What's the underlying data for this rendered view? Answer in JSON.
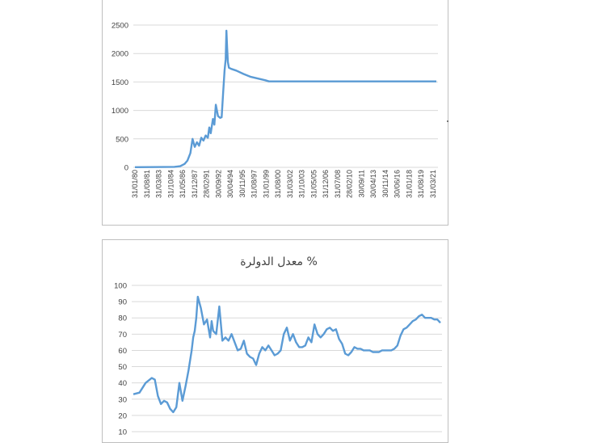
{
  "chart_data": [
    {
      "type": "line",
      "title": "",
      "xlabel": "",
      "ylabel": "",
      "ylim": [
        0,
        2500
      ],
      "y_ticks": [
        "0",
        "500",
        "1000",
        "1500",
        "2000",
        "2500"
      ],
      "x_tick_labels": [
        "31/01/80",
        "31/08/81",
        "31/03/83",
        "31/10/84",
        "31/05/86",
        "31/12/87",
        "28/02/91",
        "30/09/92",
        "30/04/94",
        "30/11/95",
        "31/08/97",
        "31/01/99",
        "31/08/00",
        "31/03/02",
        "31/10/03",
        "31/05/05",
        "31/12/06",
        "31/07/08",
        "28/02/10",
        "30/09/11",
        "30/04/13",
        "30/11/14",
        "30/06/16",
        "31/01/18",
        "31/08/19",
        "31/03/21"
      ],
      "grid": true,
      "color": "#5b9bd5",
      "series": [
        {
          "x": [
            1980.08,
            1984.0,
            1985.5,
            1986.3,
            1986.9,
            1987.3,
            1987.7,
            1988.0,
            1988.3,
            1988.6,
            1988.9,
            1989.2,
            1989.5,
            1989.8,
            1990.1,
            1990.3,
            1990.5,
            1990.8,
            1991.0,
            1991.2,
            1991.5,
            1991.8,
            1992.0,
            1992.2,
            1992.4,
            1992.55,
            1992.65,
            1992.75,
            1992.85,
            1993.0,
            1993.3,
            1994.0,
            1995.0,
            1996.0,
            1997.0,
            1998.0,
            1998.5,
            2000.0,
            2005.0,
            2010.0,
            2015.0,
            2020.0,
            2021.5
          ],
          "y": [
            3,
            5,
            8,
            20,
            60,
            120,
            250,
            500,
            360,
            440,
            380,
            520,
            470,
            560,
            520,
            700,
            600,
            850,
            750,
            1100,
            900,
            870,
            880,
            1300,
            1700,
            1900,
            2400,
            2100,
            1850,
            1750,
            1730,
            1700,
            1640,
            1590,
            1560,
            1530,
            1510,
            1510,
            1510,
            1510,
            1510,
            1510,
            1510
          ]
        }
      ]
    },
    {
      "type": "line",
      "title": "معدل الدولرة %",
      "xlabel": "",
      "ylabel": "",
      "ylim": [
        10,
        100
      ],
      "y_ticks": [
        "10",
        "20",
        "30",
        "40",
        "50",
        "60",
        "70",
        "80",
        "90",
        "100"
      ],
      "grid": true,
      "color": "#5b9bd5",
      "series": [
        {
          "x": [
            0,
            2,
            4,
            6,
            7,
            8,
            9,
            10,
            11,
            12,
            13,
            14,
            15,
            16,
            17,
            18,
            19,
            19.5,
            20,
            20.5,
            21,
            22,
            23,
            24,
            25,
            25.5,
            26,
            27,
            28,
            29,
            30,
            31,
            32,
            33,
            34,
            35,
            36,
            37,
            38,
            39,
            40,
            41,
            42,
            43,
            44,
            45,
            46,
            47,
            48,
            49,
            50,
            51,
            52,
            53,
            54,
            55,
            56,
            57,
            58,
            59,
            60,
            61,
            62,
            63,
            64,
            65,
            66,
            67,
            68,
            69,
            70,
            71,
            72,
            73,
            74,
            75,
            76,
            77,
            78,
            79,
            80,
            81,
            82,
            83,
            84,
            85,
            86,
            87,
            88,
            89,
            90,
            91,
            92,
            93,
            94,
            95,
            96,
            97,
            98,
            99,
            100
          ],
          "y": [
            33,
            34,
            40,
            43,
            42,
            32,
            27,
            29,
            28,
            24,
            22,
            25,
            40,
            29,
            38,
            48,
            60,
            68,
            72,
            80,
            93,
            86,
            76,
            79,
            68,
            78,
            72,
            70,
            87,
            66,
            68,
            66,
            70,
            65,
            60,
            61,
            66,
            58,
            56,
            55,
            51,
            58,
            62,
            60,
            63,
            60,
            57,
            58,
            60,
            70,
            74,
            66,
            70,
            65,
            62,
            62,
            63,
            68,
            65,
            76,
            70,
            68,
            70,
            73,
            74,
            72,
            73,
            67,
            64,
            58,
            57,
            59,
            62,
            61,
            61,
            60,
            60,
            60,
            59,
            59,
            59,
            60,
            60,
            60,
            60,
            61,
            63,
            69,
            73,
            74,
            76,
            78,
            79,
            81,
            82,
            80,
            80,
            80,
            79,
            79,
            77
          ]
        }
      ]
    }
  ]
}
